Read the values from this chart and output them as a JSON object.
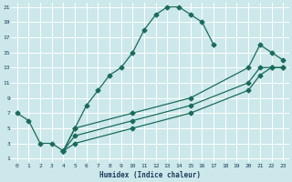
{
  "xlabel": "Humidex (Indice chaleur)",
  "bg_color": "#cce8ea",
  "grid_color": "#b8d8da",
  "line_color": "#1a6b5a",
  "xlim": [
    -0.5,
    23.5
  ],
  "ylim": [
    0.5,
    21.5
  ],
  "xticks": [
    0,
    1,
    2,
    3,
    4,
    5,
    6,
    7,
    8,
    9,
    10,
    11,
    12,
    13,
    14,
    15,
    16,
    17,
    18,
    19,
    20,
    21,
    22,
    23
  ],
  "yticks": [
    1,
    3,
    5,
    7,
    9,
    11,
    13,
    15,
    17,
    19,
    21
  ],
  "curve_main_x": [
    0,
    1,
    2,
    3,
    4,
    5,
    6,
    7,
    8,
    9,
    10,
    11,
    12,
    13,
    14,
    15,
    16,
    17
  ],
  "curve_main_y": [
    7,
    6,
    3,
    3,
    2,
    5,
    8,
    10,
    12,
    13,
    15,
    18,
    20,
    21,
    21,
    20,
    19,
    16
  ],
  "line_upper_x": [
    4,
    5,
    10,
    15,
    20,
    21,
    22,
    23
  ],
  "line_upper_y": [
    2,
    5,
    7,
    9,
    13,
    16,
    15,
    14
  ],
  "line_lower1_x": [
    4,
    5,
    10,
    15,
    20,
    21,
    22,
    23
  ],
  "line_lower1_y": [
    2,
    4,
    6,
    8,
    11,
    13,
    13,
    13
  ],
  "line_lower2_x": [
    4,
    5,
    10,
    15,
    20,
    21,
    22,
    23
  ],
  "line_lower2_y": [
    2,
    3,
    5,
    7,
    10,
    12,
    13,
    13
  ]
}
